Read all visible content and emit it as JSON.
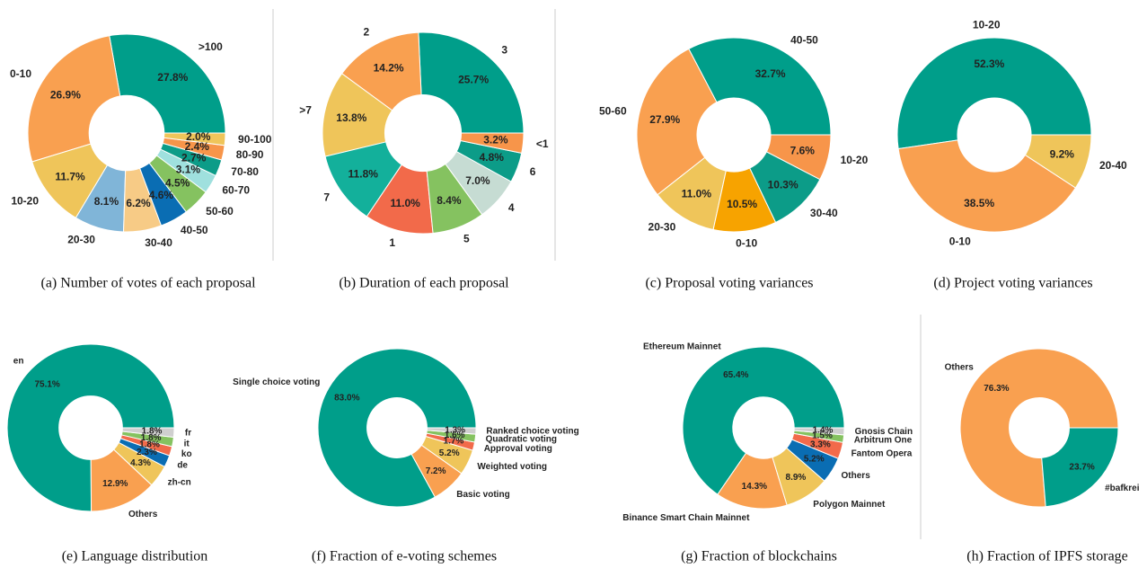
{
  "chart_data": [
    {
      "type": "pie",
      "donut": true,
      "title": "(a) Number of votes of each proposal",
      "categories": [
        ">100",
        "0-10",
        "10-20",
        "20-30",
        "30-40",
        "40-50",
        "50-60",
        "60-70",
        "70-80",
        "80-90",
        "90-100"
      ],
      "values": [
        27.8,
        26.9,
        11.7,
        8.1,
        6.2,
        4.6,
        4.5,
        3.1,
        2.7,
        2.4,
        2.0
      ],
      "value_labels": [
        "27.8%",
        "26.9%",
        "11.7%",
        "8.1%",
        "6.2%",
        "4.6%",
        "4.5%",
        "3.1%",
        "2.7%",
        "2.4%",
        "2.0%"
      ],
      "colors": [
        "#009e8a",
        "#f9a050",
        "#efc55a",
        "#80b5d8",
        "#f7cb86",
        "#0a6db3",
        "#85c260",
        "#9fe0de",
        "#0c9c88",
        "#f7954a",
        "#efc55a"
      ]
    },
    {
      "type": "pie",
      "donut": true,
      "title": "(b) Duration of each proposal",
      "categories": [
        "3",
        "2",
        ">7",
        "7",
        "1",
        "5",
        "4",
        "6",
        "<1"
      ],
      "values": [
        25.7,
        14.2,
        13.8,
        11.8,
        11.0,
        8.4,
        7.0,
        4.8,
        3.2
      ],
      "value_labels": [
        "25.7%",
        "14.2%",
        "13.8%",
        "11.8%",
        "11.0%",
        "8.4%",
        "7.0%",
        "4.8%",
        "3.2%"
      ],
      "colors": [
        "#009e8a",
        "#f9a050",
        "#efc55a",
        "#13b09b",
        "#f26a4a",
        "#85c260",
        "#c6dcd3",
        "#0c9c88",
        "#f7954a"
      ]
    },
    {
      "type": "pie",
      "donut": true,
      "title": "(c) Proposal voting variances",
      "categories": [
        "40-50",
        "50-60",
        "20-30",
        "0-10",
        "30-40",
        "10-20"
      ],
      "values": [
        32.7,
        27.9,
        11.0,
        10.5,
        10.3,
        7.6
      ],
      "value_labels": [
        "32.7%",
        "27.9%",
        "11.0%",
        "10.5%",
        "10.3%",
        "7.6%"
      ],
      "colors": [
        "#009e8a",
        "#f9a050",
        "#efc55a",
        "#f7a300",
        "#0c9c88",
        "#f7954a"
      ]
    },
    {
      "type": "pie",
      "donut": true,
      "title": "(d) Project voting variances",
      "categories": [
        "10-20",
        "0-10",
        "20-40"
      ],
      "values": [
        52.3,
        38.5,
        9.2
      ],
      "value_labels": [
        "52.3%",
        "38.5%",
        "9.2%"
      ],
      "colors": [
        "#009e8a",
        "#f9a050",
        "#efc55a"
      ]
    },
    {
      "type": "pie",
      "donut": true,
      "title": "(e) Language distribution",
      "categories": [
        "en",
        "Others",
        "zh-cn",
        "de",
        "ko",
        "it",
        "fr"
      ],
      "values": [
        75.1,
        12.9,
        4.3,
        2.3,
        1.8,
        1.8,
        1.8
      ],
      "value_labels": [
        "75.1%",
        "12.9%",
        "4.3%",
        "2.3%",
        "1.8%",
        "1.8%",
        "1.8%"
      ],
      "colors": [
        "#009e8a",
        "#f9a050",
        "#efc55a",
        "#0a6db3",
        "#f26a4a",
        "#85c260",
        "#cfcfcf"
      ]
    },
    {
      "type": "pie",
      "donut": true,
      "title": "(f) Fraction of e-voting schemes",
      "categories": [
        "Single choice voting",
        "Basic voting",
        "Weighted voting",
        "Approval voting",
        "Quadratic voting",
        "Ranked choice voting"
      ],
      "values": [
        83.0,
        7.2,
        5.2,
        1.7,
        1.6,
        1.3
      ],
      "value_labels": [
        "83.0%",
        "7.2%",
        "5.2%",
        "1.7%",
        "1.6%",
        "1.3%"
      ],
      "colors": [
        "#009e8a",
        "#f9a050",
        "#efc55a",
        "#f26a4a",
        "#85c260",
        "#cfcfcf"
      ]
    },
    {
      "type": "pie",
      "donut": true,
      "title": "(g) Fraction of blockchains",
      "categories": [
        "Ethereum Mainnet",
        "Binance Smart Chain Mainnet",
        "Polygon Mainnet",
        "Others",
        "Fantom Opera",
        "Arbitrum One",
        "Gnosis Chain"
      ],
      "values": [
        65.4,
        14.3,
        8.9,
        5.2,
        3.3,
        1.5,
        1.4
      ],
      "value_labels": [
        "65.4%",
        "14.3%",
        "8.9%",
        "5.2%",
        "3.3%",
        "1.5%",
        "1.4%"
      ],
      "colors": [
        "#009e8a",
        "#f9a050",
        "#efc55a",
        "#0a6db3",
        "#f26a4a",
        "#85c260",
        "#cfcfcf"
      ]
    },
    {
      "type": "pie",
      "donut": true,
      "title": "(h) Fraction of IPFS storage",
      "categories": [
        "Others",
        "#bafkrei"
      ],
      "values": [
        76.3,
        23.7
      ],
      "value_labels": [
        "76.3%",
        "23.7%"
      ],
      "colors": [
        "#f9a050",
        "#009e8a"
      ]
    }
  ]
}
